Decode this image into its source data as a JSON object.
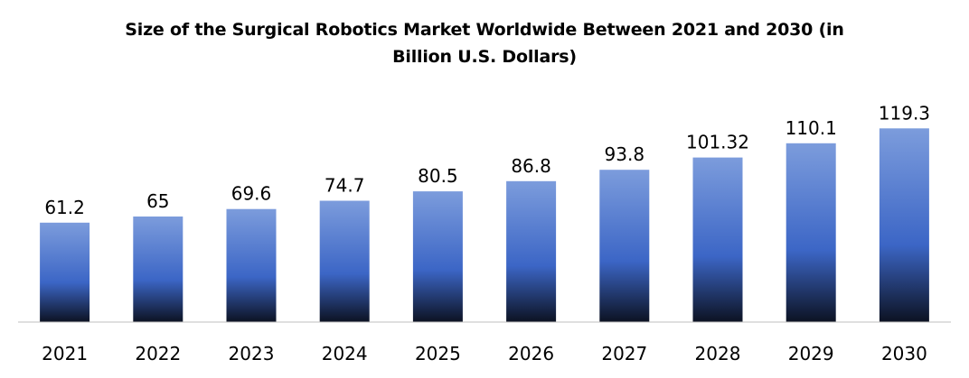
{
  "chart_data": {
    "type": "bar",
    "title": "Size of the Surgical Robotics Market Worldwide Between 2021 and 2030 (in Billion U.S. Dollars)",
    "title_lines": [
      "Size of the Surgical Robotics Market Worldwide Between 2021 and 2030 (in",
      "Billion U.S. Dollars)"
    ],
    "categories": [
      "2021",
      "2022",
      "2023",
      "2024",
      "2025",
      "2026",
      "2027",
      "2028",
      "2029",
      "2030"
    ],
    "values": [
      61.2,
      65,
      69.6,
      74.7,
      80.5,
      86.8,
      93.8,
      101.32,
      110.1,
      119.3
    ],
    "value_labels": [
      "61.2",
      "65",
      "69.6",
      "74.7",
      "80.5",
      "86.8",
      "93.8",
      "101.32",
      "110.1",
      "119.3"
    ],
    "xlabel": "",
    "ylabel": "",
    "ylim": [
      0,
      130
    ],
    "grid": false,
    "legend": "none",
    "colors": {
      "bar_top": "#7c9cdc",
      "bar_mid": "#3c66c6",
      "bar_bottom": "#0c1222",
      "axis": "#bfbfbf"
    }
  }
}
